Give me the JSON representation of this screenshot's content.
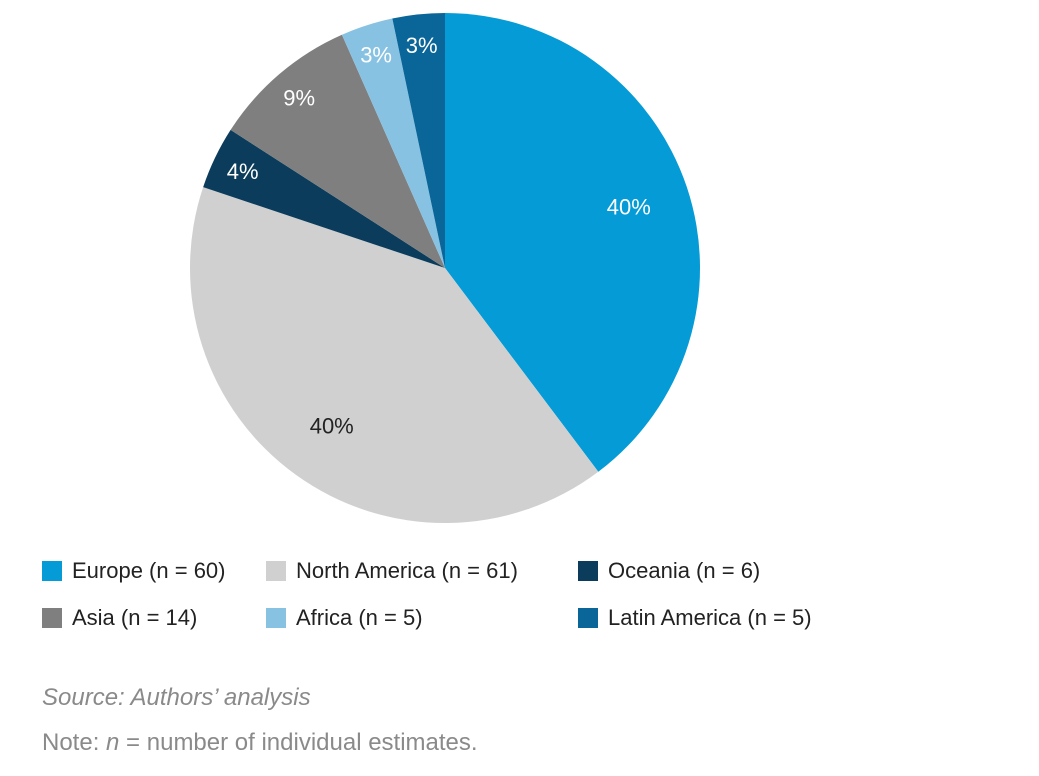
{
  "chart_data": {
    "type": "pie",
    "title": "",
    "start": "top, clockwise",
    "slices": [
      {
        "name": "Europe",
        "n": 60,
        "label": "40%",
        "color": "#049BD6",
        "label_color": "#ffffff",
        "legend": "Europe (n = 60)"
      },
      {
        "name": "North America",
        "n": 61,
        "label": "40%",
        "color": "#D0D0D0",
        "label_color": "#222222",
        "legend": "North America (n = 61)"
      },
      {
        "name": "Oceania",
        "n": 6,
        "label": "4%",
        "color": "#0B3C5B",
        "label_color": "#ffffff",
        "legend": "Oceania (n = 6)"
      },
      {
        "name": "Asia",
        "n": 14,
        "label": "9%",
        "color": "#7F7F7F",
        "label_color": "#ffffff",
        "legend": "Asia (n = 14)"
      },
      {
        "name": "Africa",
        "n": 5,
        "label": "3%",
        "color": "#88C2E2",
        "label_color": "#ffffff",
        "legend": "Africa (n = 5)"
      },
      {
        "name": "Latin America",
        "n": 5,
        "label": "3%",
        "color": "#0A6698",
        "label_color": "#ffffff",
        "legend": "Latin America (n = 5)"
      }
    ],
    "legend_position": "bottom"
  },
  "source": "Source: Authors’ analysis",
  "note": {
    "prefix": "Note: ",
    "var": "n",
    "suffix": " = number of individual estimates."
  }
}
